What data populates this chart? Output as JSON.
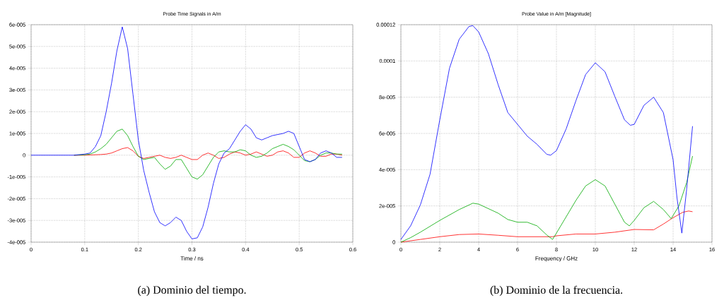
{
  "chart_data": [
    {
      "type": "line",
      "title": "Probe Time Signals in A/m",
      "xlabel": "Time / ns",
      "annotations": [
        "(a) Dominio del tiempo."
      ],
      "xlim": [
        0,
        0.6
      ],
      "xticks": [
        0,
        0.1,
        0.2,
        0.3,
        0.4,
        0.5,
        0.6
      ],
      "ylim": [
        -4e-05,
        6e-05
      ],
      "yticks": [
        {
          "value": -4e-05,
          "label": "-4e-005"
        },
        {
          "value": -3e-05,
          "label": "-3e-005"
        },
        {
          "value": -2e-05,
          "label": "-2e-005"
        },
        {
          "value": -1e-05,
          "label": "-1e-005"
        },
        {
          "value": 0,
          "label": "0"
        },
        {
          "value": 1e-05,
          "label": "1e-005"
        },
        {
          "value": 2e-05,
          "label": "2e-005"
        },
        {
          "value": 3e-05,
          "label": "3e-005"
        },
        {
          "value": 4e-05,
          "label": "4e-005"
        },
        {
          "value": 5e-05,
          "label": "5e-005"
        },
        {
          "value": 6e-05,
          "label": "6e-005"
        }
      ],
      "grid": true,
      "line_style": "solid",
      "x": [
        0,
        0.08,
        0.1,
        0.11,
        0.12,
        0.13,
        0.14,
        0.15,
        0.16,
        0.17,
        0.18,
        0.19,
        0.2,
        0.21,
        0.22,
        0.23,
        0.24,
        0.25,
        0.26,
        0.27,
        0.28,
        0.29,
        0.3,
        0.31,
        0.32,
        0.33,
        0.34,
        0.35,
        0.36,
        0.37,
        0.38,
        0.39,
        0.4,
        0.41,
        0.42,
        0.43,
        0.44,
        0.45,
        0.46,
        0.47,
        0.48,
        0.49,
        0.5,
        0.51,
        0.52,
        0.53,
        0.54,
        0.55,
        0.56,
        0.57,
        0.58
      ],
      "series": [
        {
          "color": "#ff0000",
          "values": [
            null,
            0,
            0,
            1e-07,
            2e-07,
            3e-07,
            5e-07,
            1e-06,
            2e-06,
            3e-06,
            3.5e-06,
            2e-06,
            -5e-07,
            -1.5e-06,
            -1e-06,
            -5e-07,
            0,
            -1e-06,
            -1.5e-06,
            -1e-06,
            0,
            -1e-06,
            -2e-06,
            -2e-06,
            0,
            1e-06,
            0,
            -1.5e-06,
            -1e-06,
            5e-07,
            1.5e-06,
            1e-06,
            0,
            5e-07,
            1.5e-06,
            5e-07,
            -5e-07,
            0,
            1.5e-06,
            2e-06,
            1e-06,
            -1e-06,
            -1e-06,
            1e-06,
            2e-06,
            1e-06,
            -5e-07,
            -5e-07,
            5e-07,
            5e-07,
            0
          ]
        },
        {
          "color": "#00aa00",
          "values": [
            null,
            0,
            2e-07,
            5e-07,
            1.5e-06,
            3e-06,
            5e-06,
            8e-06,
            1.1e-05,
            1.2e-05,
            9e-06,
            4e-06,
            -5e-07,
            -2e-06,
            -1.5e-06,
            -1e-06,
            -4e-06,
            -6.5e-06,
            -5e-06,
            -2e-06,
            -2e-06,
            -6e-06,
            -1e-05,
            -1.1e-05,
            -9e-06,
            -5e-06,
            -1e-06,
            1.5e-06,
            2e-06,
            1.5e-06,
            1.5e-06,
            2.5e-06,
            2e-06,
            0,
            -1e-06,
            -5e-07,
            1e-06,
            3e-06,
            4e-06,
            5e-06,
            4e-06,
            2.5e-06,
            0,
            -2.5e-06,
            -3e-06,
            -2e-06,
            0,
            1e-06,
            1e-06,
            5e-07,
            5e-07
          ]
        },
        {
          "color": "#0000ff",
          "values": [
            0,
            0,
            5e-07,
            1e-06,
            4e-06,
            9e-06,
            2e-05,
            3.3e-05,
            4.8e-05,
            5.9e-05,
            4.9e-05,
            2.8e-05,
            7e-06,
            -7e-06,
            -1.7e-05,
            -2.6e-05,
            -3.1e-05,
            -3.25e-05,
            -3.1e-05,
            -2.85e-05,
            -3e-05,
            -3.5e-05,
            -3.85e-05,
            -3.8e-05,
            -3.3e-05,
            -2.4e-05,
            -1.3e-05,
            -4e-06,
            1e-06,
            3e-06,
            7e-06,
            1.1e-05,
            1.4e-05,
            1.2e-05,
            8e-06,
            7e-06,
            8e-06,
            9e-06,
            9.5e-06,
            1e-05,
            1.1e-05,
            1e-05,
            4e-06,
            -2e-06,
            -3e-06,
            -2e-06,
            1e-06,
            2e-06,
            1e-06,
            -1e-06,
            -1e-06
          ]
        }
      ]
    },
    {
      "type": "line",
      "title": "Probe Value in A/m [Magnitude]",
      "xlabel": "Frequency / GHz",
      "annotations": [
        "(b) Dominio de la frecuencia."
      ],
      "xlim": [
        0,
        16
      ],
      "xticks": [
        0,
        2,
        4,
        6,
        8,
        10,
        12,
        14,
        16
      ],
      "ylim": [
        0,
        0.00012
      ],
      "yticks": [
        {
          "value": 0,
          "label": "0"
        },
        {
          "value": 2e-05,
          "label": "2e-005"
        },
        {
          "value": 4e-05,
          "label": "4e-005"
        },
        {
          "value": 6e-05,
          "label": "6e-005"
        },
        {
          "value": 8e-05,
          "label": "8e-005"
        },
        {
          "value": 0.0001,
          "label": "0.0001"
        },
        {
          "value": 0.00012,
          "label": "0.00012"
        }
      ],
      "grid": true,
      "line_style": "solid",
      "series": [
        {
          "color": "#ff0000",
          "x": [
            0,
            1,
            2,
            3,
            4,
            5,
            6,
            7,
            7.8,
            8,
            9,
            10,
            11,
            12,
            13,
            13.5,
            14,
            14.5,
            14.8,
            15
          ],
          "values": [
            0,
            1.5e-06,
            3e-06,
            4.2e-06,
            4.5e-06,
            3.8e-06,
            3e-06,
            3e-06,
            3e-06,
            3.5e-06,
            4.5e-06,
            4.5e-06,
            5.5e-06,
            7e-06,
            6.8e-06,
            1e-05,
            1.35e-05,
            1.65e-05,
            1.72e-05,
            1.68e-05
          ]
        },
        {
          "color": "#00aa00",
          "x": [
            0,
            0.5,
            1,
            2,
            3,
            3.7,
            4,
            5,
            5.5,
            6,
            6.5,
            7,
            7.5,
            7.8,
            8,
            8.5,
            9,
            9.5,
            10,
            10.5,
            11,
            11.5,
            11.75,
            12,
            12.5,
            13,
            13.5,
            13.9,
            14.3,
            14.7,
            15
          ],
          "values": [
            0,
            2.5e-06,
            5.5e-06,
            1.2e-05,
            1.8e-05,
            2.15e-05,
            2.1e-05,
            1.6e-05,
            1.25e-05,
            1.1e-05,
            1.1e-05,
            9e-06,
            4e-06,
            1.5e-06,
            5e-06,
            1.4e-05,
            2.3e-05,
            3.1e-05,
            3.45e-05,
            3.1e-05,
            2.1e-05,
            1.1e-05,
            9e-06,
            1.2e-05,
            1.9e-05,
            2.25e-05,
            1.8e-05,
            1.3e-05,
            2e-05,
            3.3e-05,
            4.75e-05
          ]
        },
        {
          "color": "#0000ff",
          "x": [
            0,
            0.5,
            1,
            1.5,
            2,
            2.5,
            3,
            3.5,
            3.7,
            4,
            4.5,
            5,
            5.5,
            6,
            6.5,
            7,
            7.5,
            7.7,
            8,
            8.5,
            9,
            9.5,
            10,
            10.5,
            11,
            11.5,
            11.8,
            12,
            12.5,
            13,
            13.5,
            14,
            14.2,
            14.45,
            14.7,
            15
          ],
          "values": [
            1.5e-06,
            9e-06,
            2.05e-05,
            3.75e-05,
            6.75e-05,
            9.6e-05,
            0.000112,
            0.000119,
            0.0001195,
            0.000116,
            0.000104,
            8.7e-05,
            7.15e-05,
            6.5e-05,
            5.85e-05,
            5.4e-05,
            4.85e-05,
            4.8e-05,
            5.05e-05,
            6.25e-05,
            7.8e-05,
            9.25e-05,
            9.9e-05,
            9.4e-05,
            8.05e-05,
            6.75e-05,
            6.45e-05,
            6.5e-05,
            7.55e-05,
            8e-05,
            7.15e-05,
            4.55e-05,
            2.45e-05,
            5e-06,
            2.95e-05,
            6.4e-05
          ]
        }
      ]
    }
  ]
}
